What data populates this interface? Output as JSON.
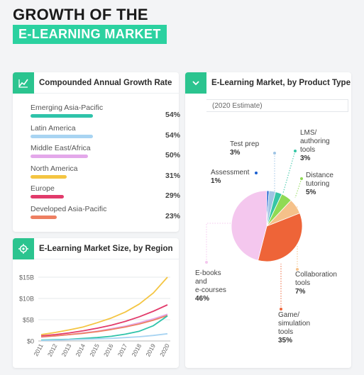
{
  "header": {
    "line1": "GROWTH OF THE",
    "line2": "E-LEARNING MARKET"
  },
  "colors": {
    "accent": "#2bd1a0",
    "icon_bg": "#2bc48f"
  },
  "cagr_card": {
    "title": "Compounded Annual Growth Rate",
    "icon": "line-chart-icon",
    "items": [
      {
        "label": "Emerging Asia-Pacific",
        "value": "54%",
        "pct": 54,
        "color": "#2fc3aa"
      },
      {
        "label": "Latin America",
        "value": "54%",
        "pct": 54,
        "color": "#a8d4f2"
      },
      {
        "label": "Middle East/Africa",
        "value": "50%",
        "pct": 50,
        "color": "#e3a8ea"
      },
      {
        "label": "North America",
        "value": "31%",
        "pct": 31,
        "color": "#f4c542"
      },
      {
        "label": "Europe",
        "value": "29%",
        "pct": 29,
        "color": "#e23b6b"
      },
      {
        "label": "Developed Asia-Pacific",
        "value": "23%",
        "pct": 23,
        "color": "#ee7f62"
      }
    ]
  },
  "product_card": {
    "title": "E-Learning Market,  by Product Type",
    "subtitle": "(2020 Estimate)",
    "icon": "chevron-down-icon"
  },
  "region_card": {
    "title": "E-Learning Market Size, by Region",
    "icon": "target-icon"
  },
  "chart_data": [
    {
      "type": "pie",
      "title": "E-Learning Market,  by Product Type",
      "subtitle": "(2020 Estimate)",
      "slices": [
        {
          "label_lines": [
            "Assessment"
          ],
          "value": 1,
          "pct_label": "1%",
          "color": "#1a5fd0"
        },
        {
          "label_lines": [
            "Test prep"
          ],
          "value": 3,
          "pct_label": "3%",
          "color": "#9fc4e4"
        },
        {
          "label_lines": [
            "LMS/",
            "authoring",
            "tools"
          ],
          "value": 3,
          "pct_label": "3%",
          "color": "#35c6a5"
        },
        {
          "label_lines": [
            "Distance",
            "tutoring"
          ],
          "value": 5,
          "pct_label": "5%",
          "color": "#8fda54"
        },
        {
          "label_lines": [
            "Collaboration",
            "tools"
          ],
          "value": 7,
          "pct_label": "7%",
          "color": "#f5c18a"
        },
        {
          "label_lines": [
            "Game/",
            "simulation",
            "tools"
          ],
          "value": 35,
          "pct_label": "35%",
          "color": "#ee6438"
        },
        {
          "label_lines": [
            "E-books",
            "and",
            "e-courses"
          ],
          "value": 46,
          "pct_label": "46%",
          "color": "#f4c7ee"
        }
      ]
    },
    {
      "type": "line",
      "title": "E-Learning Market Size, by Region",
      "x": [
        "2011",
        "2012",
        "2013",
        "2014",
        "2015",
        "2016",
        "2017",
        "2018",
        "2019",
        "2020"
      ],
      "yticks": [
        "$0",
        "$5B",
        "$10B",
        "$15B"
      ],
      "ylim": [
        0,
        15
      ],
      "series": [
        {
          "color": "#f4c542",
          "values": [
            1.5,
            2.0,
            2.6,
            3.3,
            4.3,
            5.4,
            6.8,
            8.7,
            11.3,
            15.0
          ]
        },
        {
          "color": "#e23b6b",
          "values": [
            1.2,
            1.5,
            1.9,
            2.4,
            3.0,
            3.7,
            4.6,
            5.7,
            7.0,
            8.5
          ]
        },
        {
          "color": "#e3a8ea",
          "values": [
            0.9,
            1.2,
            1.5,
            1.9,
            2.3,
            2.9,
            3.5,
            4.3,
            5.2,
            6.3
          ]
        },
        {
          "color": "#ee7f62",
          "values": [
            1.0,
            1.2,
            1.5,
            1.8,
            2.2,
            2.7,
            3.3,
            4.0,
            4.9,
            6.0
          ]
        },
        {
          "color": "#2fc3aa",
          "values": [
            0.2,
            0.3,
            0.4,
            0.6,
            0.8,
            1.1,
            1.6,
            2.3,
            3.6,
            5.9
          ]
        },
        {
          "color": "#a8d4f2",
          "values": [
            0.1,
            0.2,
            0.3,
            0.4,
            0.5,
            0.6,
            0.8,
            1.0,
            1.3,
            1.7
          ]
        }
      ]
    }
  ]
}
